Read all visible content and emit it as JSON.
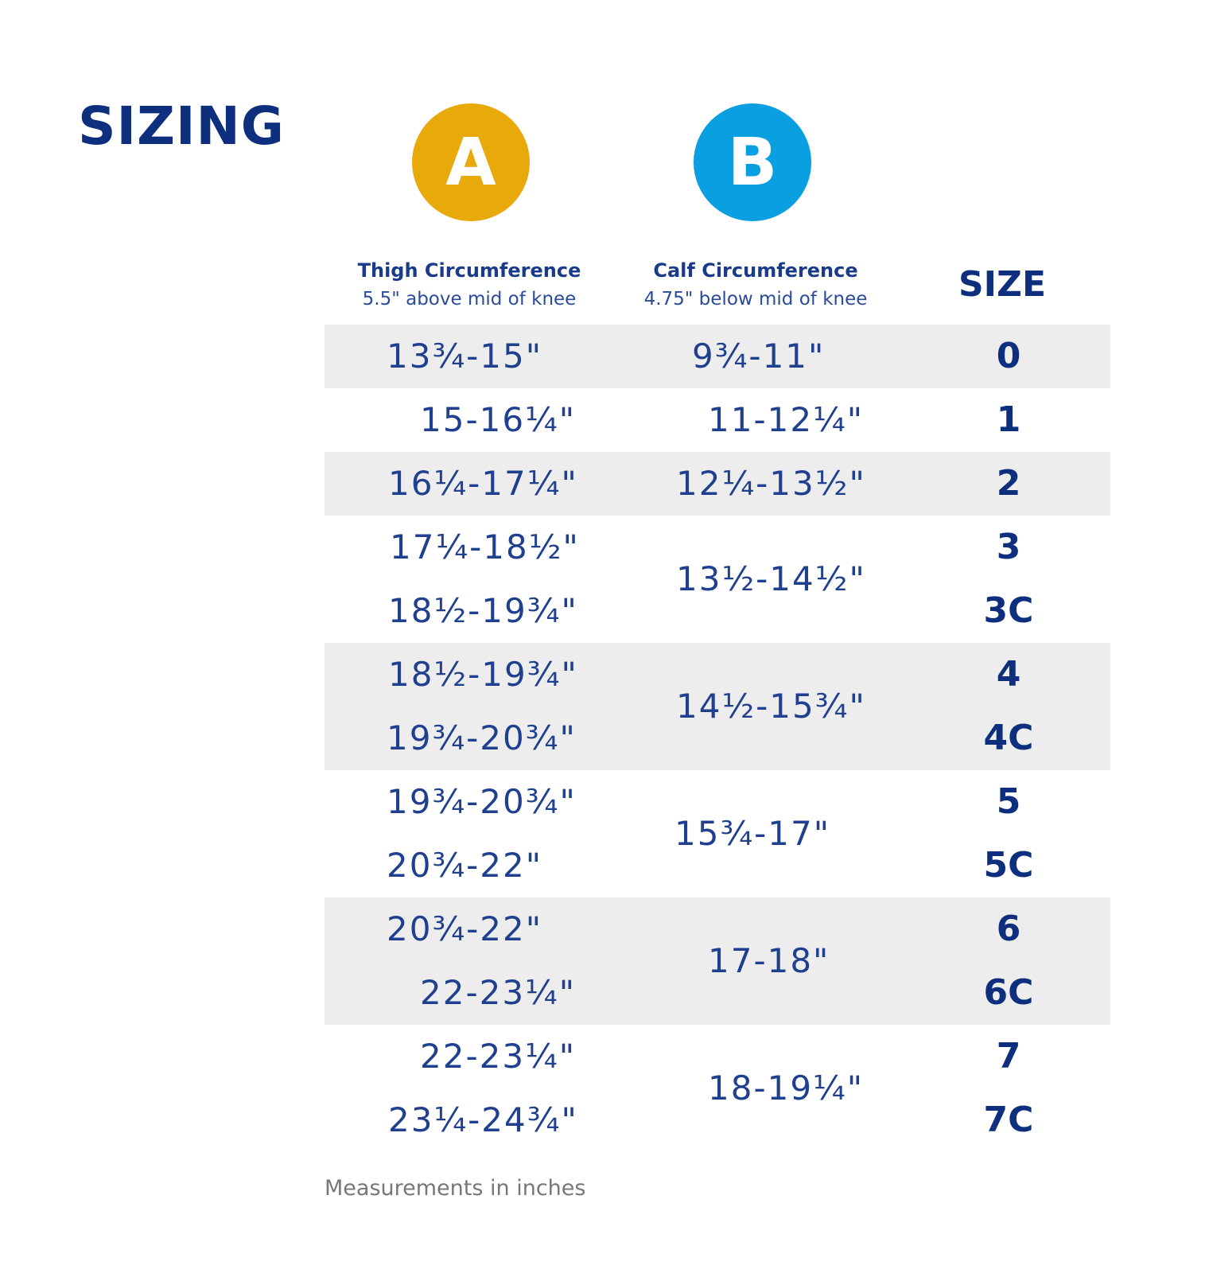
{
  "title": "SIZING",
  "badges": {
    "a": {
      "letter": "A",
      "color": "#e8a90a"
    },
    "b": {
      "letter": "B",
      "color": "#0a9fe0"
    }
  },
  "headers": {
    "a": {
      "main": "Thigh Circumference",
      "sub": "5.5\" above mid of knee"
    },
    "b": {
      "main": "Calf Circumference",
      "sub": "4.75\" below mid of knee"
    },
    "size": "SIZE"
  },
  "rows": [
    {
      "a": "13¾-15\"",
      "b": "9¾-11\"",
      "size": "0"
    },
    {
      "a": "15-16¼\"",
      "b": "11-12¼\"",
      "size": "1"
    },
    {
      "a": "16¼-17¼\"",
      "b": "12¼-13½\"",
      "size": "2"
    },
    {
      "a": "17¼-18½\"",
      "b": "13½-14½\"",
      "size": "3"
    },
    {
      "a": "18½-19¾\"",
      "b": "",
      "size": "3C"
    },
    {
      "a": "18½-19¾\"",
      "b": "14½-15¾\"",
      "size": "4"
    },
    {
      "a": "19¾-20¾\"",
      "b": "",
      "size": "4C"
    },
    {
      "a": "19¾-20¾\"",
      "b": "15¾-17\"",
      "size": "5"
    },
    {
      "a": "20¾-22\"",
      "b": "",
      "size": "5C"
    },
    {
      "a": "20¾-22\"",
      "b": "17-18\"",
      "size": "6"
    },
    {
      "a": "22-23¼\"",
      "b": "",
      "size": "6C"
    },
    {
      "a": "22-23¼\"",
      "b": "18-19¼\"",
      "size": "7"
    },
    {
      "a": "23¼-24¾\"",
      "b": "",
      "size": "7C"
    }
  ],
  "footnote": "Measurements in inches"
}
